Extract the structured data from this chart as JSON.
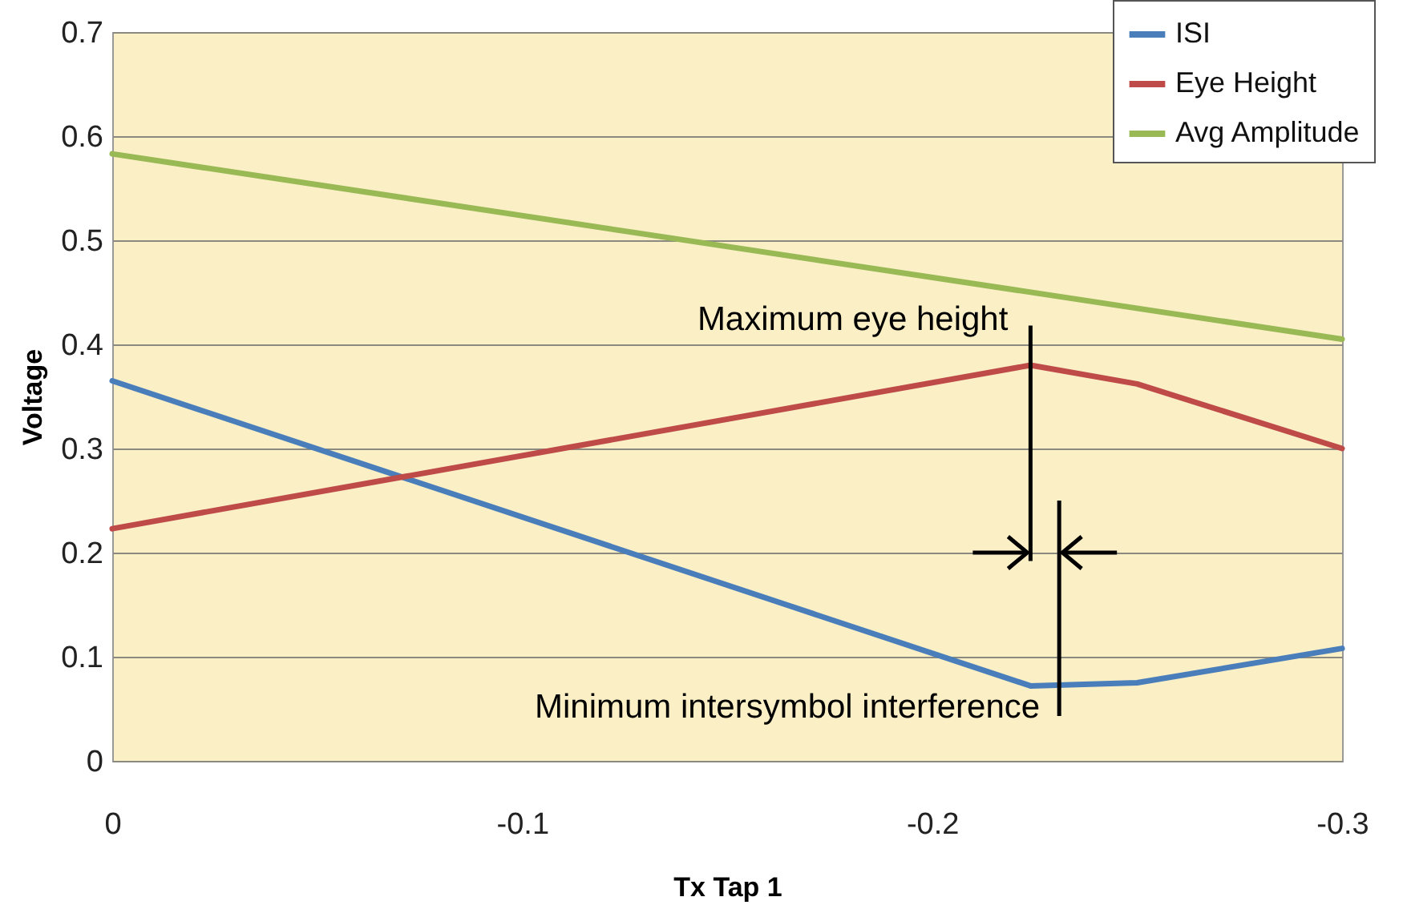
{
  "chart_data": {
    "type": "line",
    "xlabel": "Tx Tap 1",
    "ylabel": "Voltage",
    "xlim": [
      0,
      -0.3
    ],
    "xticks": [
      0,
      -0.1,
      -0.2,
      -0.3
    ],
    "ylim": [
      0,
      0.7
    ],
    "yticks": [
      0,
      0.1,
      0.2,
      0.3,
      0.4,
      0.5,
      0.6,
      0.7
    ],
    "grid": "y",
    "legend": "top right",
    "marker": "none",
    "line_style": "solid",
    "series": [
      {
        "name": "ISI",
        "color": "#4a7ebb",
        "x": [
          0,
          -0.224,
          -0.25,
          -0.3
        ],
        "values": [
          0.365,
          0.072,
          0.075,
          0.108
        ]
      },
      {
        "name": "Eye Height",
        "color": "#be4b48",
        "x": [
          0,
          -0.224,
          -0.25,
          -0.3
        ],
        "values": [
          0.223,
          0.38,
          0.362,
          0.3
        ]
      },
      {
        "name": "Avg Amplitude",
        "color": "#98b954",
        "x": [
          0,
          -0.3
        ],
        "values": [
          0.583,
          0.405
        ]
      }
    ],
    "annotations": [
      {
        "text": "Maximum eye height",
        "x": -0.224,
        "y": 0.38
      },
      {
        "text": "Minimum intersymbol interference",
        "x": -0.231,
        "y": 0.072
      }
    ]
  }
}
